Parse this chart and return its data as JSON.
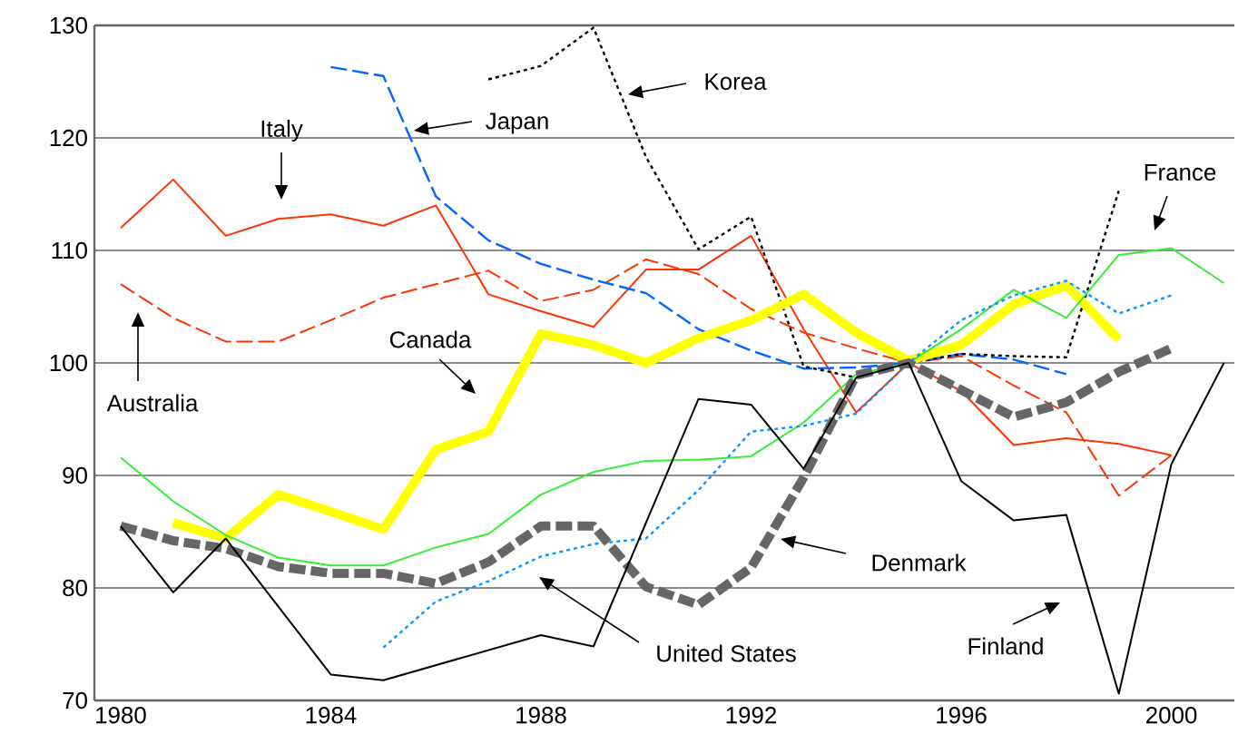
{
  "chart_data": {
    "type": "line",
    "x": [
      1980,
      1981,
      1982,
      1983,
      1984,
      1985,
      1986,
      1987,
      1988,
      1989,
      1990,
      1991,
      1992,
      1993,
      1994,
      1995,
      1996,
      1997,
      1998,
      1999,
      2000,
      2001
    ],
    "series": [
      {
        "color": "#ff3300",
        "line_style": "solid",
        "values": [
          112,
          116.3,
          111.3,
          112.8,
          113.2,
          112.2,
          114.0,
          106.1,
          104.6,
          103.2,
          108.3,
          108.3,
          111.3,
          103,
          95.6,
          100,
          97.5,
          92.7,
          93.3,
          92.8,
          91.8,
          null
        ]
      },
      {
        "color": "#ff3300",
        "line_style": "dashed",
        "values": [
          107,
          104,
          101.9,
          101.9,
          103.8,
          105.8,
          107,
          108.2,
          105.5,
          106.5,
          109.2,
          107.9,
          104.8,
          102.7,
          101.3,
          100,
          100.6,
          98,
          95.6,
          88.2,
          91.8,
          null
        ]
      },
      {
        "color": "#0066ff",
        "line_style": "dashed",
        "values": [
          null,
          null,
          null,
          null,
          126.3,
          125.5,
          114.8,
          110.9,
          108.8,
          107.4,
          106.2,
          103,
          101.1,
          99.5,
          99.6,
          100,
          100.8,
          100.3,
          99.0,
          null,
          null,
          null
        ]
      },
      {
        "color": "#000000",
        "line_style": "dotted",
        "values": [
          null,
          null,
          null,
          null,
          null,
          null,
          null,
          125.2,
          126.4,
          129.8,
          118.3,
          110.1,
          113,
          99.7,
          98.7,
          100,
          100.8,
          100.6,
          100.5,
          115.3,
          null,
          null
        ]
      },
      {
        "color": "#ffff00",
        "line_style": "solid",
        "values": [
          null,
          85.8,
          84.4,
          88.3,
          86.8,
          85.2,
          92.3,
          93.9,
          102.6,
          101.6,
          100,
          102.2,
          103.8,
          106.1,
          102.7,
          100.2,
          101.6,
          105.2,
          106.9,
          102.1,
          null,
          null
        ]
      },
      {
        "color": "#33ee33",
        "line_style": "solid",
        "values": [
          91.6,
          87.7,
          84.7,
          82.7,
          82,
          82,
          83.6,
          84.8,
          88.3,
          90.3,
          91.3,
          91.4,
          91.7,
          94.7,
          99,
          100,
          103,
          106.5,
          104,
          109.6,
          110.2,
          107.1
        ]
      },
      {
        "color": "#0099ff",
        "line_style": "dotted",
        "values": [
          null,
          null,
          null,
          null,
          null,
          74.7,
          78.8,
          80.6,
          82.8,
          83.9,
          84.4,
          88.7,
          93.9,
          94.4,
          95.5,
          100,
          103.8,
          106,
          107.3,
          104.4,
          106,
          null
        ]
      },
      {
        "color": "#666666",
        "line_style": "dashed",
        "values": [
          85.5,
          84.2,
          83.5,
          81.9,
          81.3,
          81.3,
          80.4,
          82.3,
          85.5,
          85.5,
          80.1,
          78.5,
          81.8,
          89.8,
          98.9,
          100,
          97.6,
          95.2,
          96.5,
          99.2,
          101.3,
          null
        ]
      },
      {
        "color": "#000000",
        "line_style": "solid",
        "x": [
          1980,
          1981,
          1982,
          1984,
          1985,
          1988,
          1989,
          1991,
          1992,
          1993,
          1994,
          1995,
          1996,
          1997,
          1998,
          1999,
          2000,
          2001
        ],
        "values": [
          85.5,
          79.6,
          84.4,
          72.3,
          71.8,
          75.8,
          74.8,
          96.8,
          96.3,
          90.6,
          98.7,
          100,
          89.5,
          86,
          86.5,
          70.6,
          91,
          100
        ]
      }
    ],
    "annotations": [
      "Italy",
      "Australia",
      "Japan",
      "Korea",
      "Canada",
      "France",
      "United States",
      "Denmark",
      "Finland"
    ],
    "xlim": [
      1979.5,
      2001.2
    ],
    "ylim": [
      70,
      130
    ],
    "xticks": [
      1980,
      1984,
      1988,
      1992,
      1996,
      2000
    ],
    "yticks": [
      70,
      80,
      90,
      100,
      110,
      120,
      130
    ],
    "grid": "y",
    "marker": "none"
  }
}
